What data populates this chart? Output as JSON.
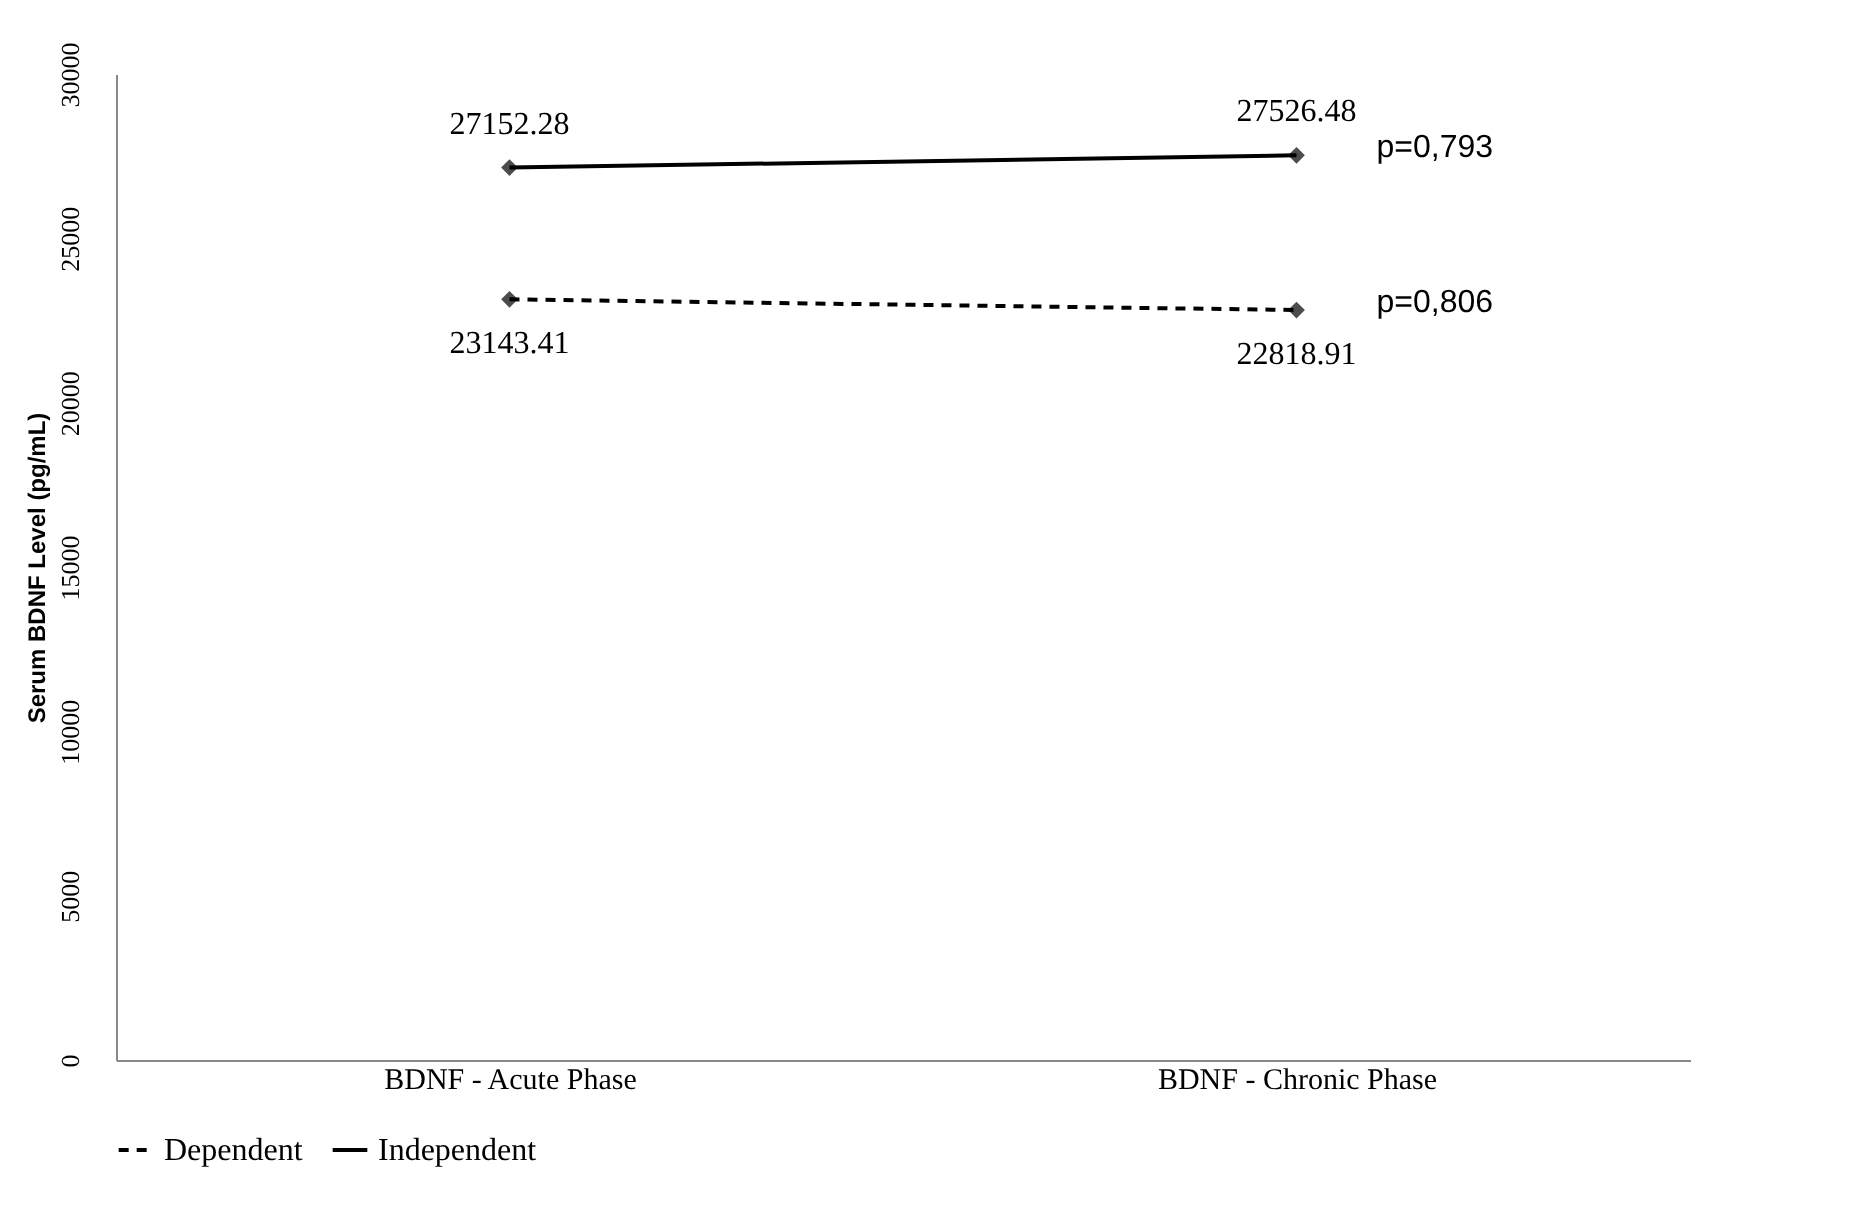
{
  "chart_data": {
    "type": "line",
    "ylabel": "Serum BDNF Level (pg/mL)",
    "categories": [
      "BDNF - Acute Phase",
      "BDNF - Chronic Phase"
    ],
    "series": [
      {
        "name": "Dependent",
        "color": "#000000",
        "line_style": "dashed",
        "values": [
          23143.41,
          22818.91
        ]
      },
      {
        "name": "Independent",
        "color": "#000000",
        "line_style": "solid",
        "values": [
          27152.28,
          27526.48
        ]
      }
    ],
    "ylim": [
      0,
      30000
    ],
    "yticks": [
      0,
      5000,
      10000,
      15000,
      20000,
      25000,
      30000
    ],
    "grid": false,
    "legend": "bottom",
    "marker": "diamond",
    "data_labels": true,
    "annotations": [
      {
        "text": "p=0,793",
        "x": "BDNF - Chronic Phase",
        "y": 27526.48
      },
      {
        "text": "p=0,806",
        "x": "BDNF - Chronic Phase",
        "y": 22818.91
      }
    ]
  }
}
